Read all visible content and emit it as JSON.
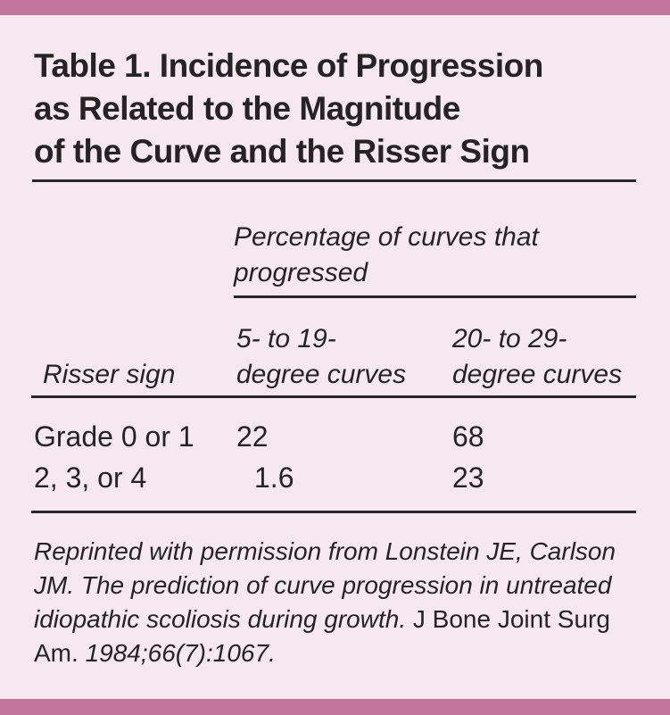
{
  "figure": {
    "title_lines": [
      "Table 1. Incidence of Progression",
      "as Related to the Magnitude",
      "of the Curve and the Risser Sign"
    ],
    "spanner_header": "Percentage of curves that progressed",
    "row_header_label": "Risser sign",
    "col_headers": [
      {
        "line1": "5- to 19-",
        "line2": "degree curves"
      },
      {
        "line1": "20- to 29-",
        "line2": "degree curves"
      }
    ],
    "rows": [
      {
        "label": "Grade 0 or 1",
        "values": [
          "22",
          "68"
        ]
      },
      {
        "label": "2, 3, or 4",
        "values": [
          "1.6",
          "23"
        ]
      }
    ],
    "footnote": {
      "italic_part1": "Reprinted with permission from Lonstein JE, Carlson JM. The prediction of curve progression in untreated idiopathic scoliosis during growth.",
      "roman_part": " J Bone Joint Surg Am. ",
      "italic_part2": "1984;66(7):1067."
    },
    "colors": {
      "accent_bar": "#c3759d",
      "background": "#f6e8ef",
      "text": "#272223"
    }
  },
  "chart_data": {
    "type": "table",
    "title": "Table 1. Incidence of Progression as Related to the Magnitude of the Curve and the Risser Sign",
    "column_group_header": "Percentage of curves that progressed",
    "columns": [
      "Risser sign",
      "5- to 19-degree curves",
      "20- to 29-degree curves"
    ],
    "rows": [
      [
        "Grade 0 or 1",
        22,
        68
      ],
      [
        "2, 3, or 4",
        1.6,
        23
      ]
    ],
    "source_note": "Reprinted with permission from Lonstein JE, Carlson JM. The prediction of curve progression in untreated idiopathic scoliosis during growth. J Bone Joint Surg Am. 1984;66(7):1067."
  }
}
